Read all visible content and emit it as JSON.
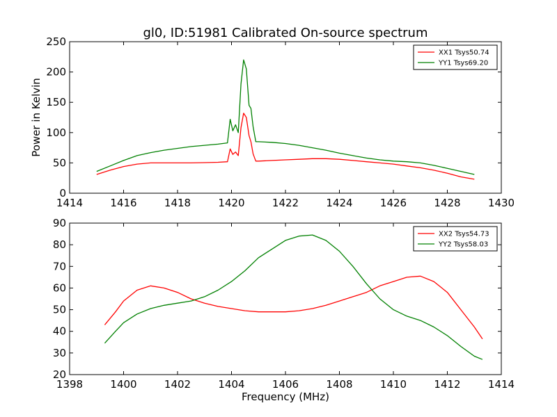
{
  "chart_data": [
    {
      "type": "line",
      "title": "gl0, ID:51981 Calibrated On-source spectrum",
      "xlabel": "",
      "ylabel": "Power in Kelvin",
      "xlim": [
        1414,
        1430
      ],
      "ylim": [
        0,
        250
      ],
      "xticks": [
        1414,
        1416,
        1418,
        1420,
        1422,
        1424,
        1426,
        1428,
        1430
      ],
      "yticks": [
        0,
        50,
        100,
        150,
        200,
        250
      ],
      "legend_position": "top-right",
      "series": [
        {
          "name": "XX1 Tsys50.74",
          "color": "#ff0000",
          "x": [
            1415.0,
            1415.5,
            1416.0,
            1416.5,
            1417.0,
            1417.5,
            1418.0,
            1418.5,
            1419.0,
            1419.5,
            1419.85,
            1419.95,
            1420.05,
            1420.15,
            1420.25,
            1420.35,
            1420.45,
            1420.55,
            1420.65,
            1420.72,
            1420.8,
            1420.9,
            1421.0,
            1421.5,
            1422.0,
            1422.5,
            1423.0,
            1423.5,
            1424.0,
            1424.5,
            1425.0,
            1425.5,
            1426.0,
            1426.5,
            1427.0,
            1427.5,
            1428.0,
            1428.5,
            1429.0
          ],
          "values": [
            31,
            38,
            44,
            48,
            50,
            50,
            50,
            50,
            50.5,
            51,
            52,
            73,
            64,
            68,
            62,
            108,
            132,
            125,
            95,
            85,
            65,
            53,
            53,
            54,
            55,
            56,
            57,
            57,
            56,
            54,
            52,
            50,
            48,
            45,
            42,
            38,
            33,
            27,
            23
          ]
        },
        {
          "name": "YY1 Tsys69.20",
          "color": "#008000",
          "x": [
            1415.0,
            1415.5,
            1416.0,
            1416.5,
            1417.0,
            1417.5,
            1418.0,
            1418.5,
            1419.0,
            1419.5,
            1419.85,
            1419.95,
            1420.05,
            1420.15,
            1420.25,
            1420.35,
            1420.45,
            1420.55,
            1420.65,
            1420.72,
            1420.8,
            1420.9,
            1421.0,
            1421.5,
            1422.0,
            1422.5,
            1423.0,
            1423.5,
            1424.0,
            1424.5,
            1425.0,
            1425.5,
            1426.0,
            1426.5,
            1427.0,
            1427.5,
            1428.0,
            1428.5,
            1429.0
          ],
          "values": [
            36,
            45,
            54,
            62,
            67,
            71,
            74,
            77,
            79,
            81,
            83,
            122,
            103,
            113,
            100,
            180,
            220,
            205,
            145,
            140,
            110,
            85,
            85,
            84,
            82,
            79,
            75,
            71,
            66,
            62,
            58,
            55,
            53,
            52,
            50,
            46,
            41,
            36,
            31
          ]
        }
      ]
    },
    {
      "type": "line",
      "title": "",
      "xlabel": "Frequency (MHz)",
      "ylabel": "",
      "xlim": [
        1398,
        1414
      ],
      "ylim": [
        20,
        90
      ],
      "xticks": [
        1398,
        1400,
        1402,
        1404,
        1406,
        1408,
        1410,
        1412,
        1414
      ],
      "yticks": [
        20,
        30,
        40,
        50,
        60,
        70,
        80,
        90
      ],
      "legend_position": "top-right",
      "series": [
        {
          "name": "XX2 Tsys54.73",
          "color": "#ff0000",
          "x": [
            1399.3,
            1399.7,
            1400.0,
            1400.5,
            1401.0,
            1401.5,
            1402.0,
            1402.5,
            1403.0,
            1403.5,
            1404.0,
            1404.5,
            1405.0,
            1405.5,
            1406.0,
            1406.5,
            1407.0,
            1407.5,
            1408.0,
            1408.5,
            1409.0,
            1409.5,
            1410.0,
            1410.5,
            1411.0,
            1411.5,
            1412.0,
            1412.5,
            1413.0,
            1413.3
          ],
          "values": [
            43,
            49,
            54,
            59,
            61,
            60,
            58,
            55,
            53,
            51.5,
            50.5,
            49.5,
            49,
            49,
            49,
            49.5,
            50.5,
            52,
            54,
            56,
            58,
            61,
            63,
            65,
            65.5,
            63,
            58,
            50,
            42,
            36.5
          ]
        },
        {
          "name": "YY2 Tsys58.03",
          "color": "#008000",
          "x": [
            1399.3,
            1399.7,
            1400.0,
            1400.5,
            1401.0,
            1401.5,
            1402.0,
            1402.5,
            1403.0,
            1403.5,
            1404.0,
            1404.5,
            1405.0,
            1405.5,
            1406.0,
            1406.5,
            1407.0,
            1407.5,
            1408.0,
            1408.5,
            1409.0,
            1409.5,
            1410.0,
            1410.5,
            1411.0,
            1411.5,
            1412.0,
            1412.5,
            1413.0,
            1413.3
          ],
          "values": [
            34.5,
            40,
            44,
            48,
            50.5,
            52,
            53,
            54,
            56,
            59,
            63,
            68,
            74,
            78,
            82,
            84,
            84.5,
            82,
            77,
            70,
            62,
            55,
            50,
            47,
            45,
            42,
            38,
            33,
            28.5,
            27
          ]
        }
      ]
    }
  ]
}
